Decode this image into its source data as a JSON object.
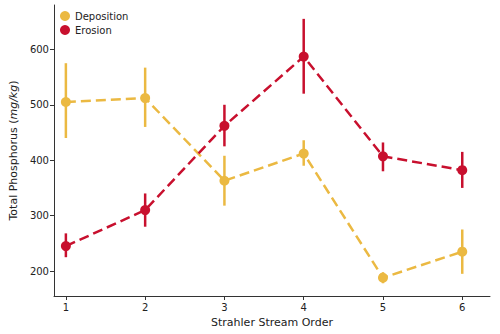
{
  "chart_data": {
    "type": "line",
    "x_label": "Strahler Stream Order",
    "y_label": "Total Phosphorus (mg/kg)",
    "x": [
      1,
      2,
      3,
      4,
      5,
      6
    ],
    "xlim": [
      0.85,
      6.35
    ],
    "xticks": [
      1,
      2,
      3,
      4,
      5,
      6
    ],
    "ylim": [
      155,
      680
    ],
    "yticks": [
      200,
      300,
      400,
      500,
      600
    ],
    "grid": false,
    "legend": "upper left",
    "marker": "circle",
    "line_style": "dashed",
    "series": [
      {
        "name": "Deposition",
        "color": "#ebb942",
        "values": [
          505,
          512,
          363,
          412,
          188,
          235
        ],
        "lower": [
          440,
          460,
          318,
          390,
          178,
          195
        ],
        "upper": [
          575,
          567,
          408,
          436,
          198,
          275
        ]
      },
      {
        "name": "Erosion",
        "color": "#c8102e",
        "values": [
          245,
          310,
          462,
          587,
          407,
          382
        ],
        "lower": [
          225,
          280,
          425,
          520,
          380,
          350
        ],
        "upper": [
          268,
          340,
          500,
          655,
          432,
          415
        ]
      }
    ]
  }
}
